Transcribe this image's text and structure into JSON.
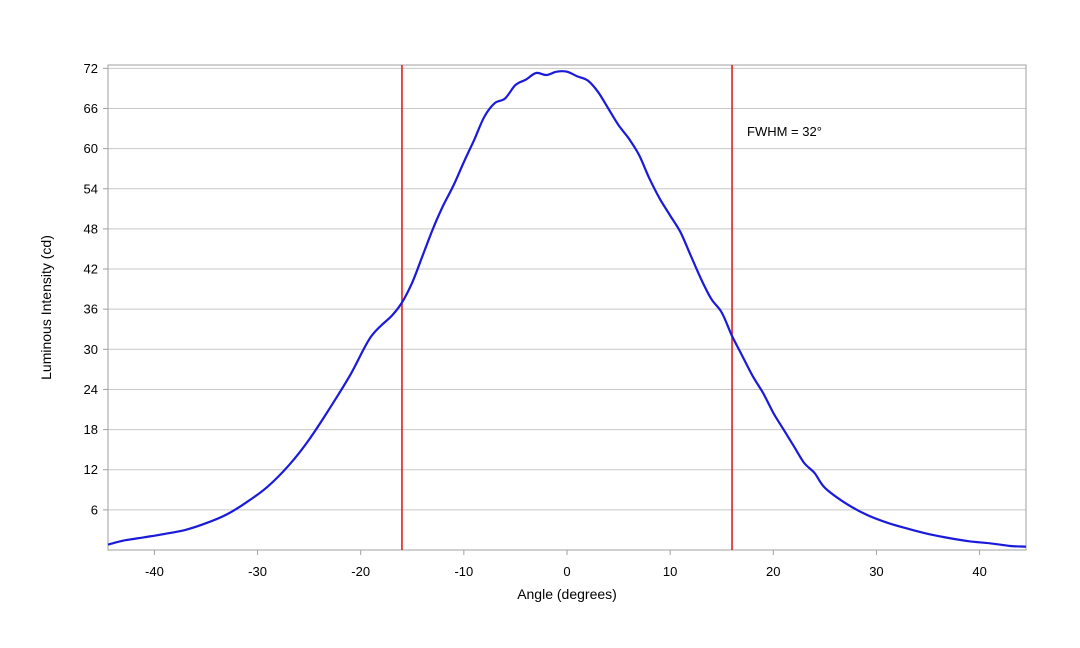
{
  "chart_data": {
    "type": "line",
    "title": "",
    "xlabel": "Angle (degrees)",
    "ylabel": "Luminous Intensity (cd)",
    "xlim": [
      -44.5,
      44.5
    ],
    "ylim": [
      0,
      72.5
    ],
    "xticks": [
      -40,
      -30,
      -20,
      -10,
      0,
      10,
      20,
      30,
      40
    ],
    "yticks": [
      6,
      12,
      18,
      24,
      30,
      36,
      42,
      48,
      54,
      60,
      66,
      72
    ],
    "grid": "horizontal",
    "colors": {
      "line": "#1a1adb",
      "markers": "#e02020",
      "grid": "#c8c8c8",
      "frame": "#a0a0a0"
    },
    "series": [
      {
        "x": [
          -44.5,
          -43,
          -41,
          -39,
          -37,
          -35,
          -33,
          -31,
          -29,
          -27,
          -25,
          -23,
          -21,
          -19,
          -17,
          -16,
          -15,
          -14,
          -13,
          -12,
          -11,
          -10,
          -9,
          -8,
          -7,
          -6,
          -5,
          -4,
          -3,
          -2,
          -1,
          0,
          1,
          2,
          3,
          4,
          5,
          6,
          7,
          8,
          9,
          10,
          11,
          12,
          13,
          14,
          15,
          16,
          17,
          18,
          19,
          20,
          21,
          22,
          23,
          24,
          25,
          27,
          29,
          31,
          33,
          35,
          37,
          39,
          41,
          43,
          44.5
        ],
        "y": [
          0.8,
          1.4,
          1.9,
          2.4,
          3.0,
          4.0,
          5.3,
          7.2,
          9.5,
          12.6,
          16.5,
          21.2,
          26.2,
          31.9,
          35.0,
          37.0,
          40.0,
          44.0,
          48.0,
          51.5,
          54.5,
          58.0,
          61.3,
          64.8,
          66.8,
          67.5,
          69.5,
          70.3,
          71.3,
          71.0,
          71.5,
          71.5,
          70.8,
          70.2,
          68.5,
          66.0,
          63.5,
          61.5,
          59.0,
          55.5,
          52.5,
          50.0,
          47.5,
          44.0,
          40.5,
          37.5,
          35.5,
          32.0,
          29.0,
          26.0,
          23.5,
          20.5,
          18.0,
          15.5,
          13.0,
          11.5,
          9.3,
          7.0,
          5.3,
          4.1,
          3.2,
          2.4,
          1.8,
          1.3,
          1.0,
          0.6,
          0.5
        ]
      }
    ],
    "markers": [
      -16,
      16
    ],
    "annotation": "FWHM = 32°"
  }
}
